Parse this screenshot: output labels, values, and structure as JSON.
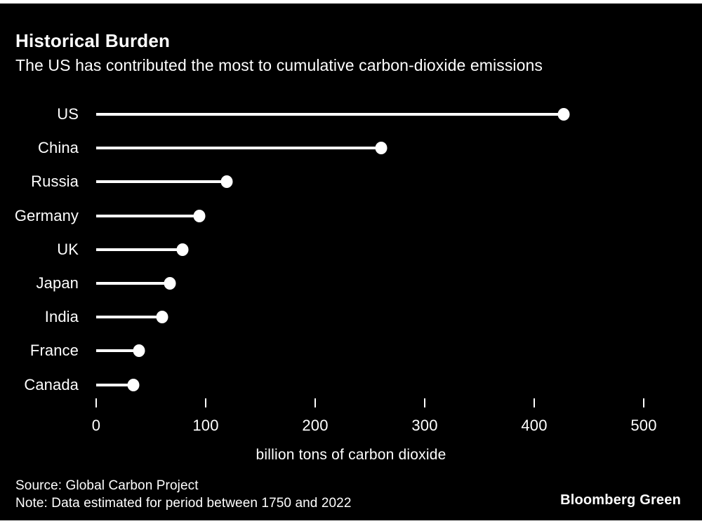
{
  "header": {
    "title": "Historical Burden",
    "subtitle": "The US has contributed the most to cumulative carbon-dioxide emissions"
  },
  "chart_data": {
    "type": "bar",
    "variant": "lollipop",
    "orientation": "horizontal",
    "categories": [
      "US",
      "China",
      "Russia",
      "Germany",
      "UK",
      "Japan",
      "India",
      "France",
      "Canada"
    ],
    "values": [
      427,
      260,
      119,
      94,
      79,
      67,
      60,
      39,
      34
    ],
    "title": "Historical Burden",
    "subtitle": "The US has contributed the most to cumulative carbon-dioxide emissions",
    "xlabel": "billion tons of carbon dioxide",
    "ylabel": "",
    "xlim": [
      0,
      500
    ],
    "xticks": [
      0,
      100,
      200,
      300,
      400,
      500
    ],
    "grid": false,
    "legend": false,
    "marker_color": "#ffffff",
    "background_color": "#000000"
  },
  "footer": {
    "source": "Source: Global Carbon Project",
    "note": "Note: Data estimated for period between 1750 and 2022",
    "brand": "Bloomberg Green"
  },
  "colors": {
    "background": "#000000",
    "foreground": "#ffffff",
    "page_edge": "#ffffff"
  }
}
